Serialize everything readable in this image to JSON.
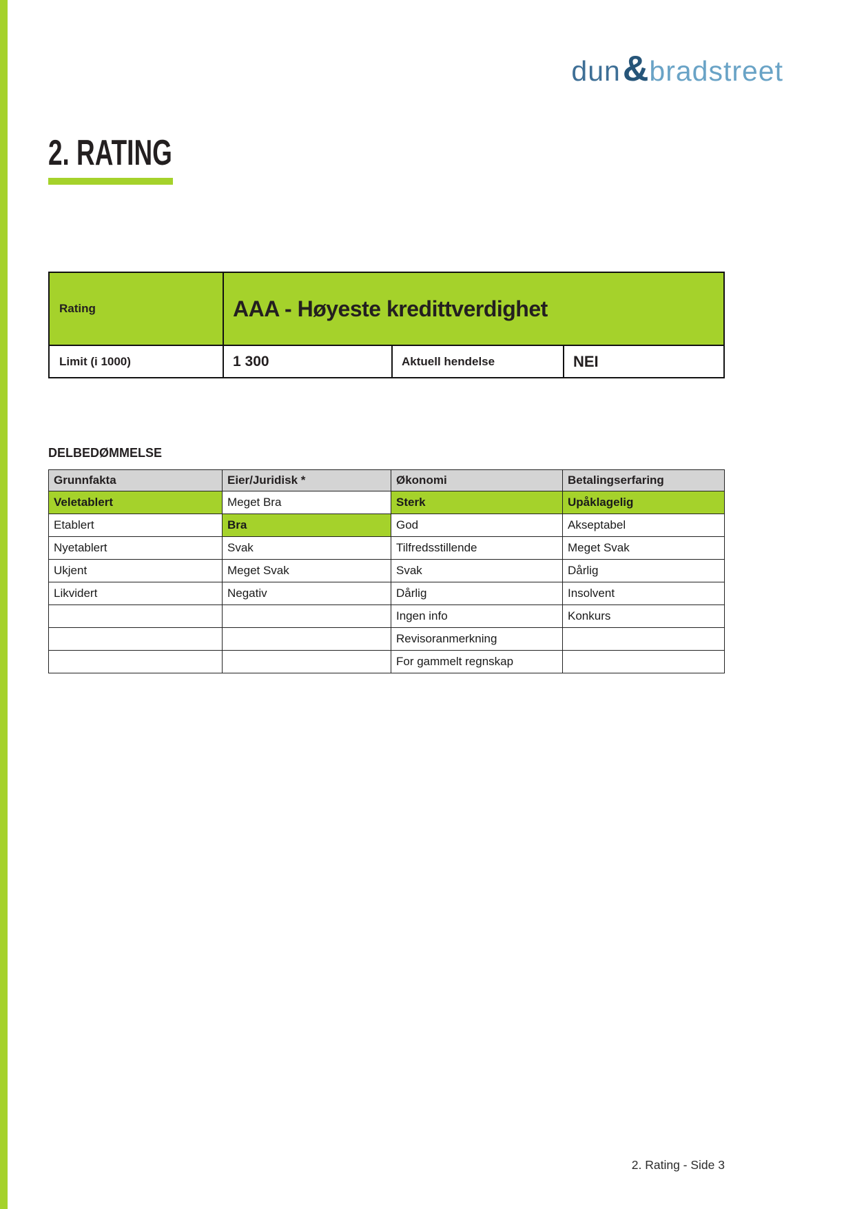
{
  "logo": {
    "part1": "dun",
    "amp": "&",
    "part2": "bradstreet"
  },
  "heading": {
    "title": "2. RATING"
  },
  "rating": {
    "rating_label": "Rating",
    "rating_value": "AAA - Høyeste kredittverdighet",
    "limit_label": "Limit (i 1000)",
    "limit_value": "1 300",
    "event_label": "Aktuell hendelse",
    "event_value": "NEI"
  },
  "assessment": {
    "title": "DELBEDØMMELSE",
    "columns": [
      "Grunnfakta",
      "Eier/Juridisk *",
      "Økonomi",
      "Betalingserfaring"
    ],
    "rows": [
      [
        "Veletablert",
        "Meget Bra",
        "Sterk",
        "Upåklagelig"
      ],
      [
        "Etablert",
        "Bra",
        "God",
        "Akseptabel"
      ],
      [
        "Nyetablert",
        "Svak",
        "Tilfredsstillende",
        "Meget Svak"
      ],
      [
        "Ukjent",
        "Meget Svak",
        "Svak",
        "Dårlig"
      ],
      [
        "Likvidert",
        "Negativ",
        "Dårlig",
        "Insolvent"
      ],
      [
        "",
        "",
        "Ingen info",
        "Konkurs"
      ],
      [
        "",
        "",
        "Revisoranmerkning",
        ""
      ],
      [
        "",
        "",
        "For gammelt regnskap",
        ""
      ]
    ],
    "highlighted": [
      [
        0,
        0
      ],
      [
        0,
        2
      ],
      [
        0,
        3
      ],
      [
        1,
        1
      ]
    ]
  },
  "footer": {
    "text": "2. Rating - Side 3"
  },
  "colors": {
    "accent_green": "#a5d22b",
    "header_gray": "#d4d4d4",
    "border_black": "#111111",
    "text_black": "#231f20",
    "logo_dun_blue": "#3e6f96",
    "logo_amp_blue": "#265579",
    "logo_bradstreet_blue": "#69a3c6"
  }
}
